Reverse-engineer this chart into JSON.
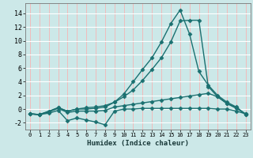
{
  "xlabel": "Humidex (Indice chaleur)",
  "bg_color": "#cce8e8",
  "grid_color": "#ffffff",
  "line_color": "#1a7070",
  "marker": "D",
  "markersize": 2.5,
  "linewidth": 1.0,
  "xlim": [
    -0.5,
    23.5
  ],
  "ylim": [
    -3.0,
    15.5
  ],
  "yticks": [
    -2,
    0,
    2,
    4,
    6,
    8,
    10,
    12,
    14
  ],
  "xticks": [
    0,
    1,
    2,
    3,
    4,
    5,
    6,
    7,
    8,
    9,
    10,
    11,
    12,
    13,
    14,
    15,
    16,
    17,
    18,
    19,
    20,
    21,
    22,
    23
  ],
  "series": [
    {
      "x": [
        0,
        1,
        2,
        3,
        4,
        5,
        6,
        7,
        8,
        9,
        10,
        11,
        12,
        13,
        14,
        15,
        16,
        17,
        18,
        19,
        20,
        21,
        22,
        23
      ],
      "y": [
        -0.7,
        -0.8,
        -0.6,
        -0.2,
        -1.7,
        -1.3,
        -1.6,
        -1.9,
        -2.3,
        -0.3,
        0.0,
        0.0,
        0.1,
        0.1,
        0.1,
        0.1,
        0.1,
        0.1,
        0.1,
        0.1,
        0.0,
        0.0,
        -0.3,
        -0.7
      ]
    },
    {
      "x": [
        0,
        1,
        2,
        3,
        4,
        5,
        6,
        7,
        8,
        9,
        10,
        11,
        12,
        13,
        14,
        15,
        16,
        17,
        18,
        19,
        20,
        21,
        22,
        23
      ],
      "y": [
        -0.7,
        -0.8,
        -0.4,
        0.1,
        -0.5,
        -0.3,
        -0.3,
        -0.3,
        -0.2,
        0.3,
        0.5,
        0.7,
        0.9,
        1.1,
        1.3,
        1.5,
        1.7,
        1.9,
        2.1,
        2.3,
        1.8,
        0.8,
        0.1,
        -0.7
      ]
    },
    {
      "x": [
        0,
        1,
        2,
        3,
        4,
        5,
        6,
        7,
        8,
        9,
        10,
        11,
        12,
        13,
        14,
        15,
        16,
        17,
        18,
        19,
        20,
        21,
        22,
        23
      ],
      "y": [
        -0.7,
        -0.8,
        -0.4,
        0.2,
        -0.3,
        0.0,
        0.0,
        0.1,
        0.3,
        1.0,
        1.8,
        2.8,
        4.2,
        5.8,
        7.5,
        9.8,
        12.9,
        13.0,
        13.0,
        3.3,
        1.8,
        0.8,
        0.2,
        -0.8
      ]
    },
    {
      "x": [
        0,
        1,
        2,
        3,
        4,
        5,
        6,
        7,
        8,
        9,
        10,
        11,
        12,
        13,
        14,
        15,
        16,
        17,
        18,
        19,
        20,
        21,
        22,
        23
      ],
      "y": [
        -0.7,
        -0.8,
        -0.3,
        0.2,
        -0.3,
        0.0,
        0.2,
        0.3,
        0.5,
        1.0,
        2.2,
        4.0,
        5.8,
        7.5,
        9.8,
        12.5,
        14.5,
        11.0,
        5.5,
        3.5,
        2.0,
        1.0,
        0.3,
        -0.8
      ]
    }
  ]
}
